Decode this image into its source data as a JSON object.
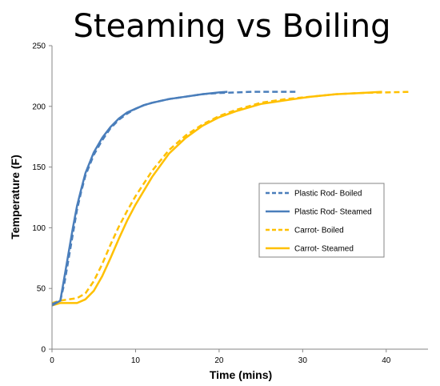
{
  "chart_data": {
    "type": "line",
    "title": "Steaming vs Boiling",
    "xlabel": "Time (mins)",
    "ylabel": "Temperature (F)",
    "xlim": [
      0,
      45
    ],
    "ylim": [
      0,
      250
    ],
    "xticks": [
      0,
      10,
      20,
      30,
      40
    ],
    "yticks": [
      0,
      50,
      100,
      150,
      200,
      250
    ],
    "grid": false,
    "legend_position": "center-right",
    "series": [
      {
        "name": "Plastic Rod- Boiled",
        "color": "#4a7ebb",
        "dash": "dashed",
        "x": [
          0,
          1,
          1.5,
          2,
          2.5,
          3,
          3.5,
          4,
          5,
          6,
          7,
          8,
          9,
          10,
          11,
          12,
          14,
          16,
          18,
          20,
          22,
          24,
          26,
          28,
          29.5
        ],
        "y": [
          37,
          40,
          55,
          75,
          95,
          115,
          130,
          143,
          160,
          172,
          182,
          189,
          194,
          198,
          201,
          203,
          206,
          208,
          210,
          211,
          211.5,
          212,
          212,
          212,
          212
        ]
      },
      {
        "name": "Plastic Rod- Steamed",
        "color": "#4a7ebb",
        "dash": "solid",
        "x": [
          0,
          1,
          1.5,
          2,
          2.5,
          3,
          3.5,
          4,
          5,
          6,
          7,
          8,
          9,
          10,
          11,
          12,
          14,
          16,
          18,
          20,
          21
        ],
        "y": [
          36,
          40,
          60,
          80,
          100,
          118,
          132,
          145,
          162,
          174,
          183,
          190,
          195,
          198,
          201,
          203,
          206,
          208,
          210,
          211.5,
          212
        ]
      },
      {
        "name": "Carrot- Boiled",
        "color": "#ffc000",
        "dash": "dashed",
        "x": [
          0,
          1,
          2,
          3,
          4,
          5,
          6,
          7,
          8,
          9,
          10,
          12,
          14,
          16,
          18,
          20,
          22,
          25,
          28,
          31,
          34,
          37,
          40,
          43
        ],
        "y": [
          38,
          40,
          41,
          42,
          46,
          56,
          70,
          86,
          101,
          114,
          126,
          147,
          164,
          176,
          185,
          192,
          197,
          203,
          206,
          208,
          210,
          211,
          211.5,
          212
        ]
      },
      {
        "name": "Carrot- Steamed",
        "color": "#ffc000",
        "dash": "solid",
        "x": [
          0,
          1,
          2,
          3,
          4,
          5,
          6,
          7,
          8,
          9,
          10,
          12,
          14,
          16,
          18,
          20,
          22,
          25,
          28,
          31,
          34,
          37,
          39.5
        ],
        "y": [
          36,
          38,
          38,
          38,
          41,
          48,
          60,
          75,
          91,
          106,
          119,
          142,
          161,
          174,
          184,
          191,
          196,
          202,
          205,
          208,
          210,
          211,
          212
        ]
      }
    ]
  }
}
